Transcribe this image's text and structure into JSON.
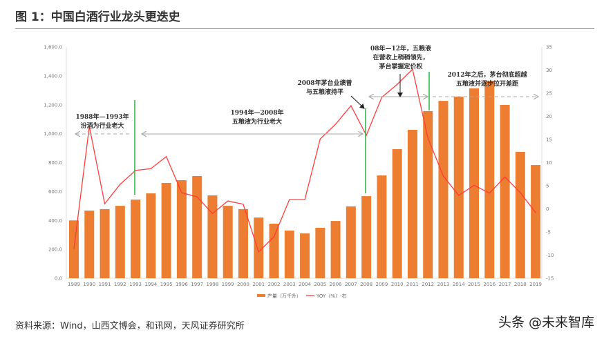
{
  "title": "图 1：中国白酒行业龙头更迭史",
  "source": "资料来源：Wind，山西文博会，和讯网，天风证券研究所",
  "watermark": "头条 @未来智库",
  "colors": {
    "bar": "#ed7d31",
    "line": "#ff3b3b",
    "divider": "#2db84b",
    "accent": "#e8903a"
  },
  "chart_data": {
    "type": "bar",
    "categories": [
      "1989",
      "1990",
      "1991",
      "1992",
      "1993",
      "1994",
      "1995",
      "1996",
      "1997",
      "1998",
      "1999",
      "2000",
      "2001",
      "2002",
      "2003",
      "2004",
      "2005",
      "2006",
      "2007",
      "2008",
      "2009",
      "2010",
      "2011",
      "2012",
      "2013",
      "2014",
      "2015",
      "2016",
      "2017",
      "2018",
      "2019"
    ],
    "series": [
      {
        "name": "产量（万千升）",
        "type": "bar",
        "axis": "left",
        "values": [
          400,
          468,
          478,
          501,
          544,
          587,
          659,
          678,
          707,
          573,
          501,
          478,
          420,
          377,
          330,
          310,
          349,
          396,
          497,
          568,
          711,
          893,
          1027,
          1156,
          1227,
          1256,
          1313,
          1366,
          1199,
          874,
          783
        ]
      },
      {
        "name": "YOY（%）-右",
        "type": "line",
        "axis": "right",
        "values": [
          -8.6,
          17.8,
          1.1,
          5.3,
          8.3,
          8.7,
          11.3,
          3.5,
          2.6,
          -1.0,
          1.7,
          1.0,
          -9.3,
          -6.0,
          2.0,
          2.0,
          15.1,
          18.3,
          22.3,
          15.9,
          24.1,
          26.9,
          30.2,
          15.3,
          7.1,
          2.9,
          5.1,
          3.4,
          6.9,
          3.5,
          -0.8
        ]
      }
    ],
    "ylim_left": [
      0,
      1600
    ],
    "yticks_left": [
      "0.0",
      "200.0",
      "400.0",
      "600.0",
      "800.0",
      "1,000.0",
      "1,200.0",
      "1,400.0",
      "1,600.0"
    ],
    "ylim_right": [
      -15,
      35
    ],
    "yticks_right": [
      "-15",
      "-10",
      "-5",
      "0",
      "5",
      "10",
      "15",
      "20",
      "25",
      "30",
      "35"
    ],
    "legend_position": "bottom",
    "grid": false,
    "annotations": [
      {
        "lines": [
          "1988年—1993年",
          "汾酒为行业老大"
        ]
      },
      {
        "lines": [
          "1994年—2008年",
          "五粮液为行业老大"
        ]
      },
      {
        "lines": [
          "2008年茅台业绩曾",
          "与五粮液持平"
        ]
      },
      {
        "lines": [
          "08年—12年，五粮液",
          "在营收上稍稍领先，",
          "茅台掌握定价权"
        ]
      },
      {
        "lines": [
          "2012年之后，茅台彻底超越",
          "五粮液并逐步拉开差距"
        ]
      }
    ],
    "dividers": [
      "1993",
      "2008",
      "2012"
    ]
  }
}
